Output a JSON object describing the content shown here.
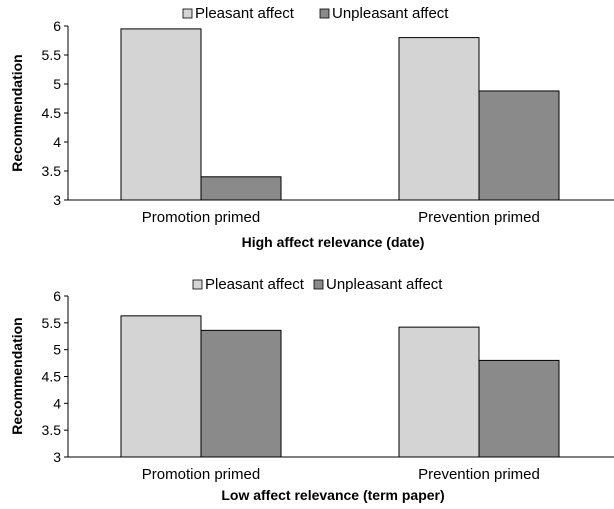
{
  "chart_data": [
    {
      "type": "bar",
      "title": "",
      "categories": [
        "Promotion primed",
        "Prevention primed"
      ],
      "series": [
        {
          "name": "Pleasant affect",
          "values": [
            5.95,
            5.8
          ],
          "color": "#d4d4d4"
        },
        {
          "name": "Unpleasant affect",
          "values": [
            3.4,
            4.88
          ],
          "color": "#8a8a8a"
        }
      ],
      "xlabel": "High affect relevance (date)",
      "ylabel": "Recommendation",
      "ylim": [
        3,
        6
      ],
      "yticks": [
        "3",
        "3.5",
        "4",
        "4.5",
        "5",
        "5.5",
        "6"
      ],
      "legend": "top",
      "grid": false
    },
    {
      "type": "bar",
      "title": "",
      "categories": [
        "Promotion primed",
        "Prevention primed"
      ],
      "series": [
        {
          "name": "Pleasant affect",
          "values": [
            5.63,
            5.42
          ],
          "color": "#d4d4d4"
        },
        {
          "name": "Unpleasant affect",
          "values": [
            5.36,
            4.8
          ],
          "color": "#8a8a8a"
        }
      ],
      "xlabel": "Low affect relevance (term paper)",
      "ylabel": "Recommendation",
      "ylim": [
        3,
        6
      ],
      "yticks": [
        "3",
        "3.5",
        "4",
        "4.5",
        "5",
        "5.5",
        "6"
      ],
      "legend": "top",
      "grid": false
    }
  ]
}
